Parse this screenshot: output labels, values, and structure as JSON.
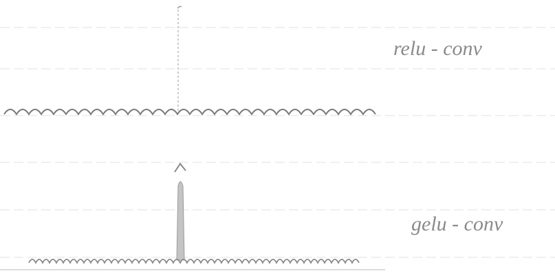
{
  "labels": [
    "relu - conv",
    "gelu - conv"
  ]
}
